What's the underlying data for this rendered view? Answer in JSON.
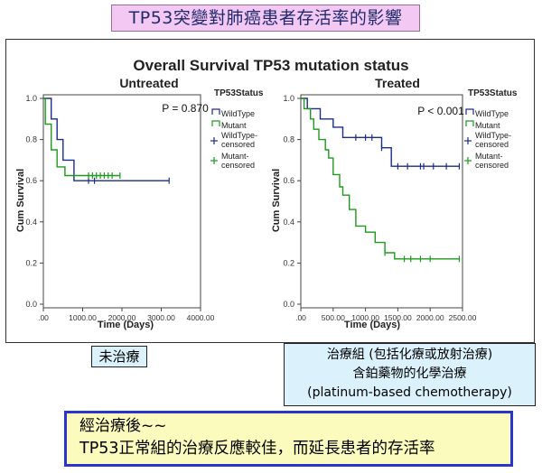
{
  "banner_title": "TP53突變對肺癌患者存活率的影響",
  "chart_data": [
    {
      "type": "line",
      "subtype": "kaplan-meier",
      "title": "Overall Survival TP53 mutation status",
      "subtitle": "Untreated",
      "xlabel": "Time (Days)",
      "ylabel": "Cum Survival",
      "xlim": [
        0,
        4000
      ],
      "ylim": [
        0,
        1.0
      ],
      "x_ticks": [
        0,
        1000,
        2000,
        3000,
        4000
      ],
      "x_tick_labels": [
        ".00",
        "1000.00",
        "2000.00",
        "3000.00",
        "4000.00"
      ],
      "y_ticks": [
        0,
        0.2,
        0.4,
        0.6,
        0.8,
        1.0
      ],
      "y_tick_labels": [
        "0.0",
        "0.2",
        "0.4",
        "0.6",
        "0.8",
        "1.0"
      ],
      "p_value": "P = 0.870",
      "legend_title": "TP53Status",
      "legend": [
        "WildType",
        "Mutant",
        "WildType-censored",
        "Mutant-censored"
      ],
      "grid": false,
      "series": [
        {
          "name": "WildType",
          "color": "#1c2c8c",
          "steps": [
            [
              0,
              1.0
            ],
            [
              200,
              1.0
            ],
            [
              200,
              0.9
            ],
            [
              350,
              0.9
            ],
            [
              350,
              0.8
            ],
            [
              500,
              0.8
            ],
            [
              500,
              0.7
            ],
            [
              780,
              0.7
            ],
            [
              780,
              0.6
            ],
            [
              3200,
              0.6
            ]
          ],
          "censored": [
            [
              1150,
              0.6
            ],
            [
              1300,
              0.6
            ],
            [
              3200,
              0.6
            ]
          ]
        },
        {
          "name": "Mutant",
          "color": "#1e9a1e",
          "steps": [
            [
              0,
              1.0
            ],
            [
              50,
              1.0
            ],
            [
              50,
              0.875
            ],
            [
              200,
              0.875
            ],
            [
              200,
              0.75
            ],
            [
              350,
              0.75
            ],
            [
              350,
              0.667
            ],
            [
              550,
              0.667
            ],
            [
              550,
              0.625
            ],
            [
              1950,
              0.625
            ]
          ],
          "censored": [
            [
              1150,
              0.625
            ],
            [
              1250,
              0.625
            ],
            [
              1350,
              0.625
            ],
            [
              1450,
              0.625
            ],
            [
              1550,
              0.625
            ],
            [
              1650,
              0.625
            ],
            [
              1750,
              0.625
            ],
            [
              1950,
              0.625
            ]
          ]
        }
      ]
    },
    {
      "type": "line",
      "subtype": "kaplan-meier",
      "subtitle": "Treated",
      "xlabel": "Time (Days)",
      "ylabel": "Cum Survival",
      "xlim": [
        0,
        2500
      ],
      "ylim": [
        0,
        1.0
      ],
      "x_ticks": [
        0,
        500,
        1000,
        1500,
        2000,
        2500
      ],
      "x_tick_labels": [
        ".00",
        "500.00",
        "1000.00",
        "1500.00",
        "2000.00",
        "2500.00"
      ],
      "y_ticks": [
        0,
        0.2,
        0.4,
        0.6,
        0.8,
        1.0
      ],
      "y_tick_labels": [
        "0.0",
        "0.2",
        "0.4",
        "0.6",
        "0.8",
        "1.0"
      ],
      "p_value": "P < 0.001",
      "legend_title": "TP53Status",
      "legend": [
        "WildType",
        "Mutant",
        "WildType-censored",
        "Mutant-censored"
      ],
      "grid": false,
      "series": [
        {
          "name": "WildType",
          "color": "#1c2c8c",
          "steps": [
            [
              0,
              1.0
            ],
            [
              100,
              1.0
            ],
            [
              100,
              0.95
            ],
            [
              300,
              0.95
            ],
            [
              300,
              0.9
            ],
            [
              500,
              0.9
            ],
            [
              500,
              0.86
            ],
            [
              650,
              0.86
            ],
            [
              650,
              0.81
            ],
            [
              1250,
              0.81
            ],
            [
              1250,
              0.76
            ],
            [
              1400,
              0.76
            ],
            [
              1400,
              0.67
            ],
            [
              2450,
              0.67
            ]
          ],
          "censored": [
            [
              850,
              0.81
            ],
            [
              1000,
              0.81
            ],
            [
              1100,
              0.81
            ],
            [
              1250,
              0.76
            ],
            [
              1500,
              0.67
            ],
            [
              1650,
              0.67
            ],
            [
              1850,
              0.67
            ],
            [
              1900,
              0.67
            ],
            [
              2050,
              0.67
            ],
            [
              2250,
              0.67
            ],
            [
              2450,
              0.67
            ]
          ]
        },
        {
          "name": "Mutant",
          "color": "#1e9a1e",
          "steps": [
            [
              0,
              1.0
            ],
            [
              50,
              1.0
            ],
            [
              50,
              0.95
            ],
            [
              150,
              0.95
            ],
            [
              150,
              0.9
            ],
            [
              200,
              0.9
            ],
            [
              200,
              0.85
            ],
            [
              280,
              0.85
            ],
            [
              280,
              0.8
            ],
            [
              380,
              0.8
            ],
            [
              380,
              0.75
            ],
            [
              430,
              0.75
            ],
            [
              430,
              0.71
            ],
            [
              500,
              0.71
            ],
            [
              500,
              0.63
            ],
            [
              600,
              0.63
            ],
            [
              600,
              0.57
            ],
            [
              650,
              0.57
            ],
            [
              650,
              0.53
            ],
            [
              750,
              0.53
            ],
            [
              750,
              0.46
            ],
            [
              850,
              0.46
            ],
            [
              850,
              0.38
            ],
            [
              1000,
              0.38
            ],
            [
              1000,
              0.35
            ],
            [
              1150,
              0.35
            ],
            [
              1150,
              0.3
            ],
            [
              1300,
              0.3
            ],
            [
              1300,
              0.25
            ],
            [
              1450,
              0.25
            ],
            [
              1450,
              0.22
            ],
            [
              2450,
              0.22
            ]
          ],
          "censored": [
            [
              1300,
              0.25
            ],
            [
              1600,
              0.22
            ],
            [
              1700,
              0.22
            ],
            [
              1850,
              0.22
            ],
            [
              2000,
              0.22
            ],
            [
              2450,
              0.22
            ]
          ]
        }
      ]
    }
  ],
  "caption_untreated": "未治療",
  "caption_treated": [
    "治療組 (包括化療或放射治療)",
    "含鉑藥物的化學治療",
    "(platinum-based chemotherapy)"
  ],
  "conclusion": {
    "line1": "經治療後~~",
    "line2": "TP53正常組的治療反應較佳，而延長患者的存活率"
  }
}
